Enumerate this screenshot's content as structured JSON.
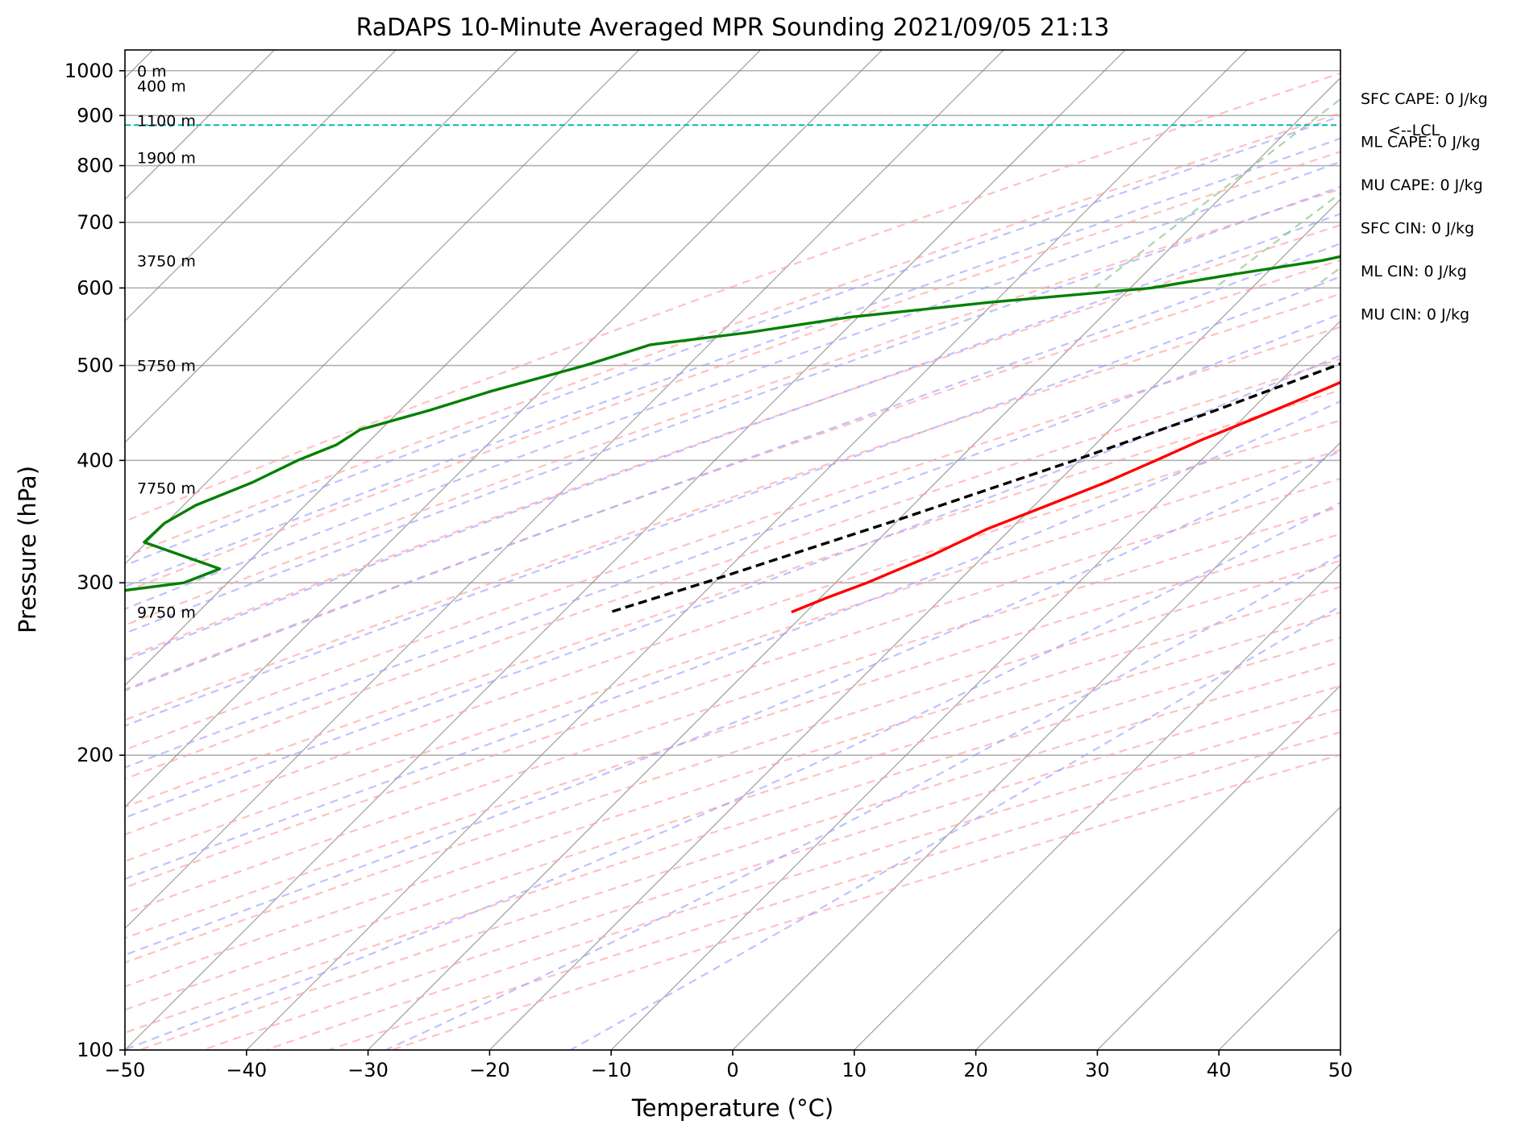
{
  "chart_data": {
    "type": "line",
    "subtype": "skew-t log-p sounding",
    "title": "RaDAPS 10-Minute Averaged MPR Sounding 2021/09/05 21:13",
    "xlabel": "Temperature (°C)",
    "ylabel": "Pressure (hPa)",
    "xlim": [
      -50,
      50
    ],
    "ylim": [
      1050,
      100
    ],
    "y_scale": "log",
    "x_ticks": [
      -50,
      -40,
      -30,
      -20,
      -10,
      0,
      10,
      20,
      30,
      40,
      50
    ],
    "x_tick_labels": [
      "−50",
      "−40",
      "−30",
      "−20",
      "−10",
      "0",
      "10",
      "20",
      "30",
      "40",
      "50"
    ],
    "y_ticks": [
      1000,
      900,
      800,
      700,
      600,
      500,
      400,
      300,
      200,
      100
    ],
    "y_tick_labels": [
      "1000",
      "900",
      "800",
      "700",
      "600",
      "500",
      "400",
      "300",
      "200",
      "100"
    ],
    "grid": true,
    "skew_degrees": 45,
    "series": [
      {
        "name": "",
        "variable": "temperature",
        "color": "#ff0000",
        "p": [
          990,
          975,
          960,
          940,
          920,
          900,
          890,
          870,
          850,
          820,
          800,
          770,
          750,
          730,
          720,
          700,
          680,
          660,
          640,
          620,
          600,
          580,
          560,
          550,
          540,
          520,
          500,
          480,
          460,
          440,
          420,
          400,
          380,
          360,
          340,
          320,
          300,
          290,
          280
        ],
        "t": [
          30.0,
          28.2,
          27.2,
          26.0,
          24.9,
          23.8,
          23.2,
          22.2,
          21.2,
          19.7,
          18.7,
          17.5,
          16.7,
          15.9,
          15.5,
          14.3,
          12.8,
          11.2,
          9.7,
          8.4,
          7.1,
          5.6,
          3.9,
          3.0,
          1.3,
          -1.1,
          -3.2,
          -5.0,
          -7.0,
          -9.2,
          -11.6,
          -13.7,
          -16.0,
          -18.9,
          -22.0,
          -24.3,
          -27.4,
          -29.4,
          -31.2
        ]
      },
      {
        "name": "",
        "variable": "dewpoint",
        "color": "#008000",
        "p": [
          995,
          985,
          975,
          960,
          945,
          930,
          915,
          900,
          890,
          880,
          860,
          840,
          820,
          800,
          780,
          760,
          740,
          720,
          700,
          680,
          660,
          640,
          620,
          600,
          580,
          560,
          540,
          525,
          500,
          470,
          450,
          430,
          415,
          400,
          380,
          360,
          345,
          330,
          310,
          300,
          290,
          280
        ],
        "t": [
          22.0,
          22.9,
          22.5,
          23.0,
          22.8,
          23.3,
          23.4,
          23.0,
          22.6,
          22.0,
          20.3,
          18.6,
          16.6,
          14.8,
          12.9,
          11.3,
          9.8,
          3.9,
          -2.2,
          -7.8,
          -12.5,
          -16.5,
          -22.5,
          -28.3,
          -40.4,
          -50.8,
          -57.9,
          -64.8,
          -68.5,
          -74.2,
          -77.6,
          -81.7,
          -82.4,
          -84.3,
          -86.2,
          -89.0,
          -90.1,
          -90.2,
          -81.8,
          -83.6,
          -91.6,
          -96.5
        ]
      },
      {
        "name": "",
        "variable": "parcel profile",
        "color": "#000000",
        "dashed": true,
        "p": [
          990,
          960,
          930,
          900,
          880,
          850,
          800,
          750,
          700,
          650,
          600,
          550,
          500,
          450,
          400,
          350,
          300,
          280
        ],
        "t": [
          30.0,
          27.4,
          24.9,
          22.2,
          20.5,
          19.0,
          16.4,
          13.6,
          10.5,
          7.0,
          3.1,
          -1.4,
          -6.7,
          -12.9,
          -20.4,
          -29.6,
          -40.8,
          -46.1
        ]
      }
    ],
    "lcl": {
      "pressure": 880,
      "label": "<--LCL",
      "color": "#00b8b8"
    },
    "height_labels": [
      {
        "text": "9750 m",
        "pressure": 280
      },
      {
        "text": "7750 m",
        "pressure": 375
      },
      {
        "text": "5750 m",
        "pressure": 500
      },
      {
        "text": "3750 m",
        "pressure": 640
      },
      {
        "text": "1900 m",
        "pressure": 815
      },
      {
        "text": "1100 m",
        "pressure": 890
      },
      {
        "text": "400 m",
        "pressure": 965
      },
      {
        "text": "0 m",
        "pressure": 1000
      }
    ],
    "parameters": [
      "SFC CAPE: 0 J/kg",
      "ML CAPE: 0 J/kg",
      "MU CAPE: 0 J/kg",
      "SFC CIN: 0 J/kg",
      "ML CIN: 0 J/kg",
      "MU CIN: 0 J/kg"
    ],
    "background_lines": {
      "isotherms": {
        "color": "#7f7f7f",
        "start": -160,
        "end": 50,
        "step": 10
      },
      "dry_adiabats": {
        "color": "#ff9f9f",
        "dashed": true,
        "theta_start": -30,
        "theta_end": 200,
        "theta_step": 10
      },
      "moist_adiabats": {
        "color": "#9f9fff",
        "dashed": true,
        "start_temps": [
          -20,
          -15,
          -10,
          -5,
          0,
          5,
          10,
          15,
          20,
          25,
          30,
          35,
          40,
          45
        ]
      },
      "mixing_ratio_lines": {
        "color": "#7fbf7f",
        "dashed": true,
        "values": [
          0.0004,
          0.001,
          0.002,
          0.004,
          0.007,
          0.01,
          0.016,
          0.024,
          0.032
        ],
        "p_top": 600
      }
    }
  }
}
